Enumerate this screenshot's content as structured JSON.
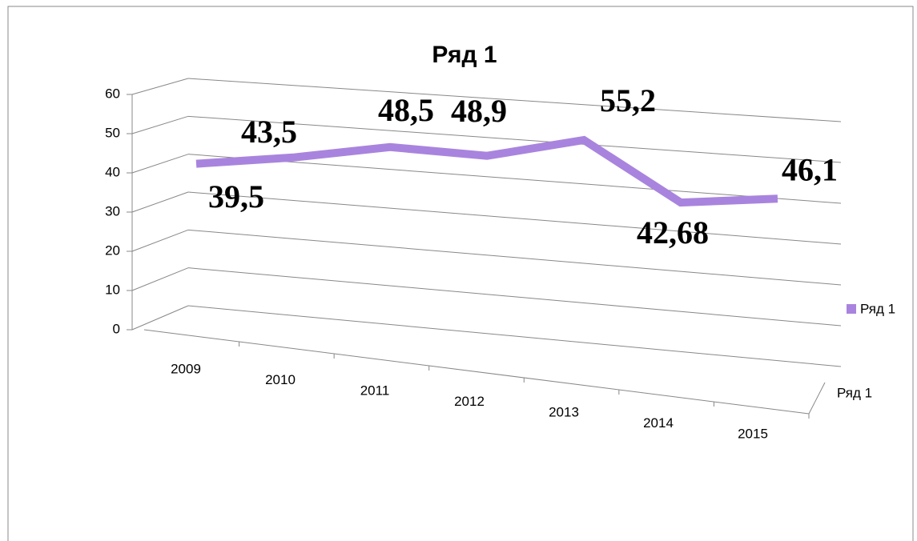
{
  "chart_data": {
    "type": "line",
    "title": "Ряд 1",
    "categories": [
      "2009",
      "2010",
      "2011",
      "2012",
      "2013",
      "2014",
      "2015"
    ],
    "series": [
      {
        "name": "Ряд 1",
        "color": "#a984de",
        "values": [
          39.5,
          43.5,
          48.5,
          48.9,
          55.2,
          42.68,
          46.1
        ],
        "value_labels": [
          "39,5",
          "43,5",
          "48,5",
          "48,9",
          "55,2",
          "42,68",
          "46,1"
        ]
      }
    ],
    "depth_categories": [
      "Ряд 1"
    ],
    "ylim": [
      0,
      60
    ],
    "yticks": [
      0,
      10,
      20,
      30,
      40,
      50,
      60
    ],
    "grid": true,
    "legend": "right"
  }
}
